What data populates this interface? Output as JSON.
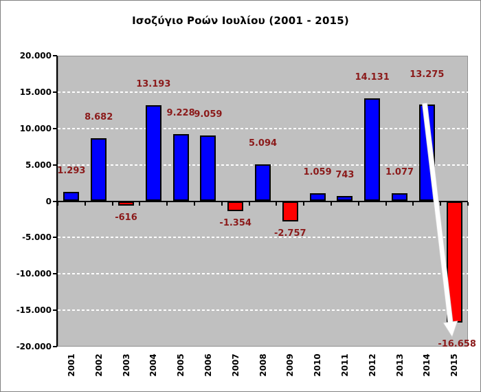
{
  "title": "Ισοζύγιο Ροών Ιουλίου (2001 - 2015)",
  "chart_data": {
    "type": "bar",
    "title": "Ισοζύγιο Ροών Ιουλίου (2001 - 2015)",
    "xlabel": "",
    "ylabel": "",
    "categories": [
      "2001",
      "2002",
      "2003",
      "2004",
      "2005",
      "2006",
      "2007",
      "2008",
      "2009",
      "2010",
      "2011",
      "2012",
      "2013",
      "2014",
      "2015"
    ],
    "values": [
      1293,
      8682,
      -616,
      13193,
      9228,
      9059,
      -1354,
      5094,
      -2757,
      1059,
      743,
      14131,
      1077,
      13275,
      -16658
    ],
    "value_labels": [
      "1.293",
      "8.682",
      "-616",
      "13.193",
      "9.228",
      "9.059",
      "-1.354",
      "5.094",
      "-2.757",
      "1.059",
      "743",
      "14.131",
      "1.077",
      "13.275",
      "-16.658"
    ],
    "ylim": [
      -20000,
      20000
    ],
    "ytick_step": 5000,
    "ytick_labels": [
      "20.000",
      "15.000",
      "10.000",
      "5.000",
      "0",
      "-5.000",
      "-10.000",
      "-15.000",
      "-20.000"
    ],
    "grid": "horizontal white dashed at every 5.000 except 0 and limits",
    "legend": "none",
    "plot_bg_color": "#C0C0C0",
    "positive_bar_color": "#0000FF",
    "negative_bar_color": "#FF0000",
    "bar_border_color": "#000000",
    "label_color": "#8B1A1A",
    "axis_color": "#000000",
    "annotation": {
      "type": "arrow",
      "color": "#FFFFFF",
      "from": "top of 2014 bar (13.275)",
      "to": "bottom of 2015 bar (-16.658)"
    }
  }
}
